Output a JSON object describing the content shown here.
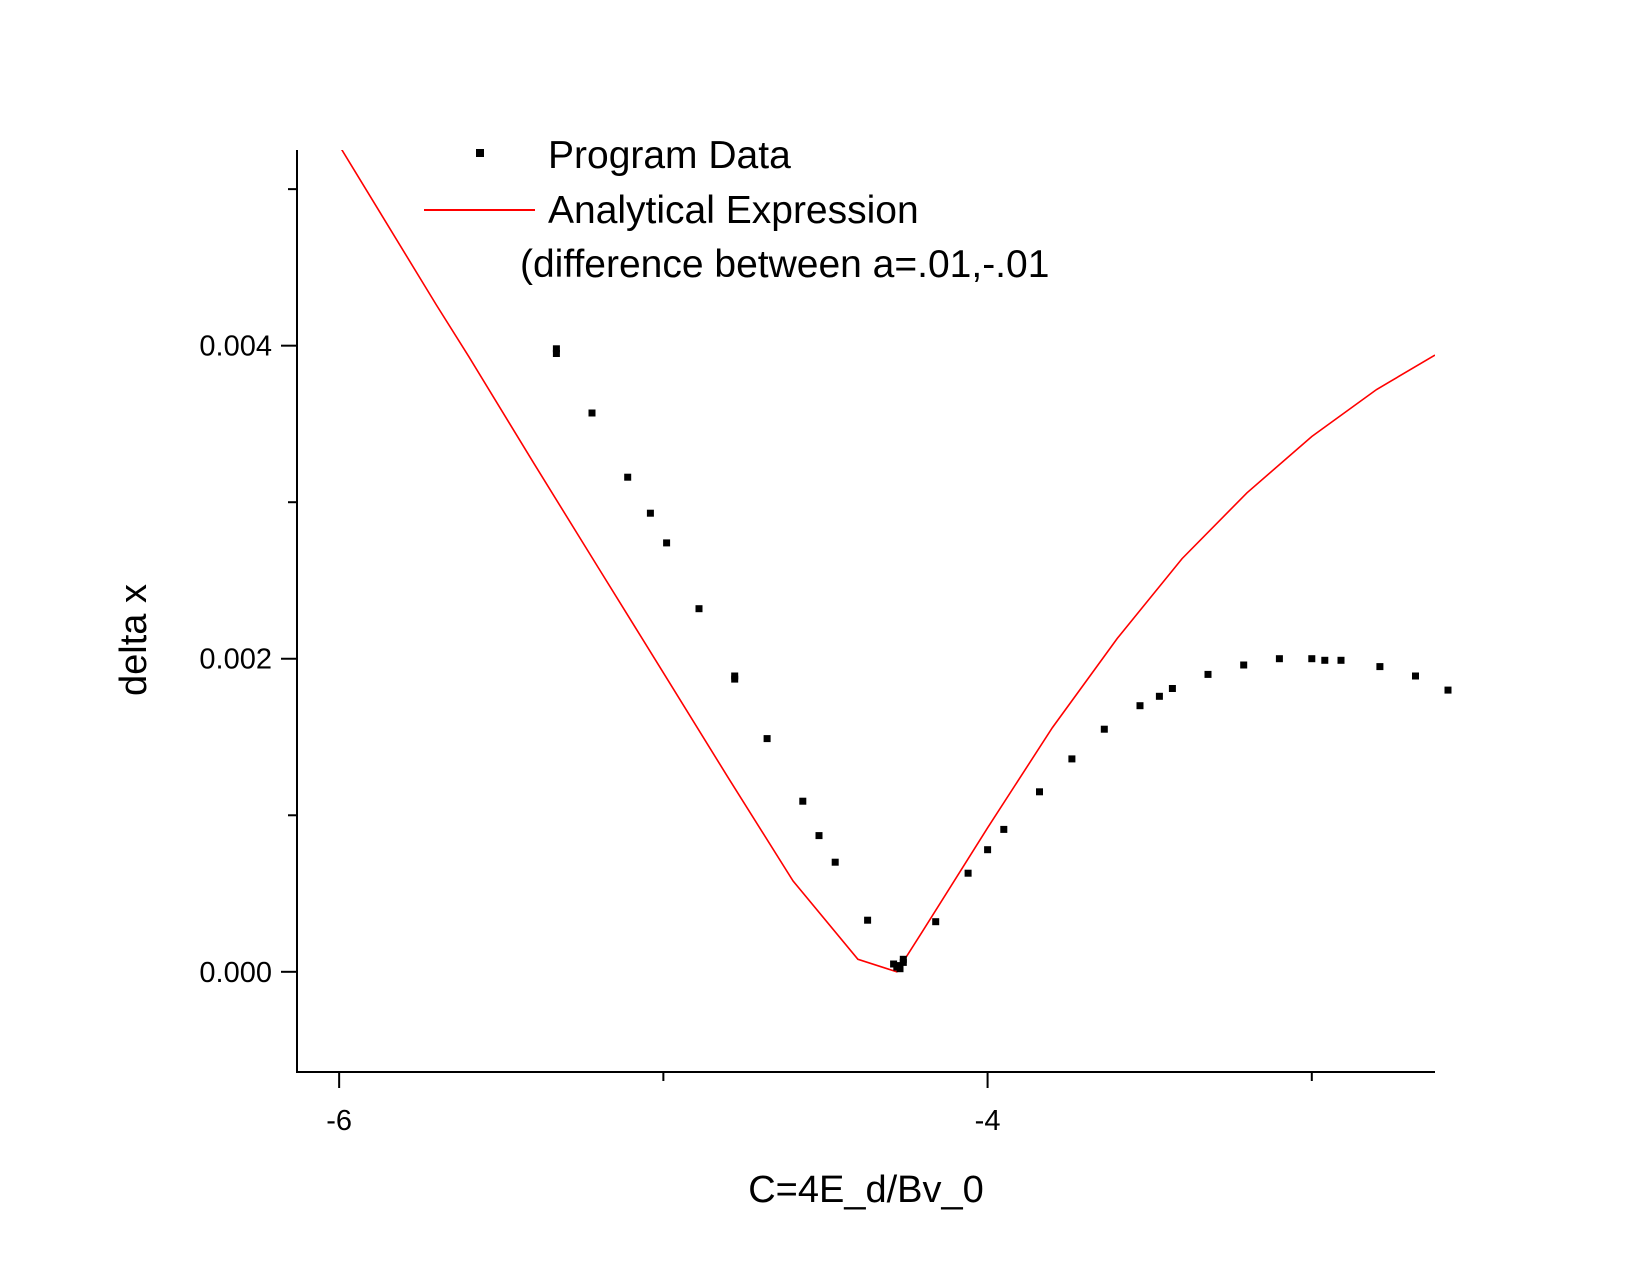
{
  "chart_data": {
    "type": "scatter",
    "title": "",
    "xlabel": "C=4E_d/Bv_0",
    "ylabel": "delta x",
    "xlim": [
      -6.13,
      -2.62
    ],
    "ylim": [
      -0.00064,
      0.00525
    ],
    "x_ticks": [
      -6,
      -4
    ],
    "x_tick_labels": [
      "-6",
      "-4"
    ],
    "x_minor_ticks": [
      -5,
      -3
    ],
    "y_ticks": [
      0.0,
      0.002,
      0.004
    ],
    "y_tick_labels": [
      "0.000",
      "0.002",
      "0.004"
    ],
    "y_minor_ticks": [
      0.001,
      0.003,
      0.005
    ],
    "grid": false,
    "legend_position": "top",
    "legend": {
      "entries": [
        "Program Data",
        "Analytical Expression"
      ],
      "note": "(difference between a=.01,-.01"
    },
    "series": [
      {
        "name": "Program Data",
        "kind": "scatter",
        "color": "#000000",
        "points": [
          [
            -5.33,
            0.00398
          ],
          [
            -5.33,
            0.00395
          ],
          [
            -5.22,
            0.00357
          ],
          [
            -5.11,
            0.00316
          ],
          [
            -5.04,
            0.00293
          ],
          [
            -4.99,
            0.00274
          ],
          [
            -4.89,
            0.00232
          ],
          [
            -4.78,
            0.00189
          ],
          [
            -4.78,
            0.00187
          ],
          [
            -4.68,
            0.00149
          ],
          [
            -4.57,
            0.00109
          ],
          [
            -4.52,
            0.00087
          ],
          [
            -4.47,
            0.0007
          ],
          [
            -4.37,
            0.00033
          ],
          [
            -4.29,
            5e-05
          ],
          [
            -4.28,
            3e-05
          ],
          [
            -4.27,
            2e-05
          ],
          [
            -4.27,
            4e-05
          ],
          [
            -4.26,
            6e-05
          ],
          [
            -4.26,
            8e-05
          ],
          [
            -4.16,
            0.00032
          ],
          [
            -4.06,
            0.00063
          ],
          [
            -4.0,
            0.00078
          ],
          [
            -3.95,
            0.00091
          ],
          [
            -3.84,
            0.00115
          ],
          [
            -3.74,
            0.00136
          ],
          [
            -3.64,
            0.00155
          ],
          [
            -3.53,
            0.0017
          ],
          [
            -3.47,
            0.00176
          ],
          [
            -3.43,
            0.00181
          ],
          [
            -3.32,
            0.0019
          ],
          [
            -3.21,
            0.00196
          ],
          [
            -3.1,
            0.002
          ],
          [
            -3.0,
            0.002
          ],
          [
            -2.96,
            0.00199
          ],
          [
            -2.91,
            0.00199
          ],
          [
            -2.79,
            0.00195
          ],
          [
            -2.68,
            0.00189
          ],
          [
            -2.58,
            0.0018
          ]
        ]
      },
      {
        "name": "Analytical Expression",
        "kind": "line",
        "color": "#ff0000",
        "points": [
          [
            -6.02,
            0.00534
          ],
          [
            -6.0,
            0.00528
          ],
          [
            -5.7,
            0.00426
          ],
          [
            -5.6,
            0.00393
          ],
          [
            -5.4,
            0.00325
          ],
          [
            -5.2,
            0.00258
          ],
          [
            -5.0,
            0.00191
          ],
          [
            -4.8,
            0.00124
          ],
          [
            -4.6,
            0.00058
          ],
          [
            -4.4,
            8e-05
          ],
          [
            -4.28,
            0.0
          ],
          [
            -4.2,
            0.00026
          ],
          [
            -4.0,
            0.00092
          ],
          [
            -3.8,
            0.00156
          ],
          [
            -3.6,
            0.00213
          ],
          [
            -3.4,
            0.00264
          ],
          [
            -3.2,
            0.00306
          ],
          [
            -3.0,
            0.00342
          ],
          [
            -2.8,
            0.00372
          ],
          [
            -2.62,
            0.00394
          ]
        ]
      }
    ]
  }
}
